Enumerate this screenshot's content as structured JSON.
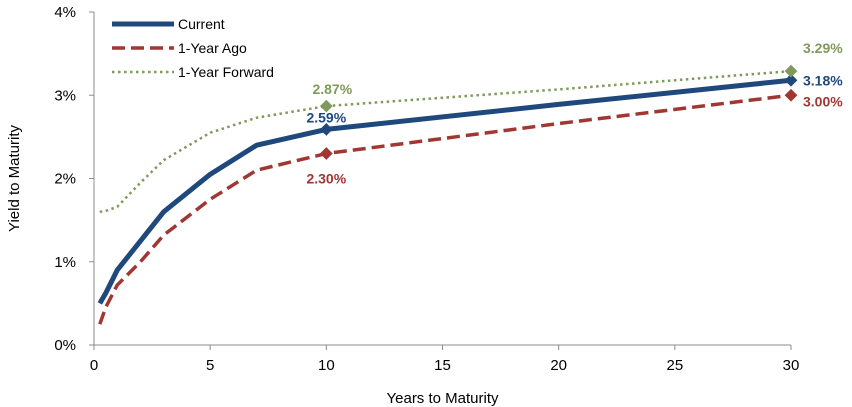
{
  "chart_data": {
    "type": "line",
    "xlabel": "Years to Maturity",
    "ylabel": "Yield to Maturity",
    "xlim": [
      0,
      30
    ],
    "ylim": [
      0,
      4
    ],
    "xticks": [
      0,
      5,
      10,
      15,
      20,
      25,
      30
    ],
    "xtick_labels": [
      "0",
      "5",
      "10",
      "15",
      "20",
      "25",
      "30"
    ],
    "yticks": [
      0,
      1,
      2,
      3,
      4
    ],
    "ytick_labels": [
      "0%",
      "1%",
      "2%",
      "3%",
      "4%"
    ],
    "grid": false,
    "legend_position": "top-left",
    "series": [
      {
        "name": "Current",
        "color": "#1f497d",
        "style": "solid",
        "x": [
          0.25,
          0.5,
          1,
          2,
          3,
          5,
          7,
          10,
          20,
          30
        ],
        "y": [
          0.5,
          0.62,
          0.9,
          1.25,
          1.6,
          2.05,
          2.4,
          2.59,
          2.89,
          3.18
        ],
        "labeled_points": [
          {
            "x": 10,
            "y": 2.59,
            "label": "2.59%"
          },
          {
            "x": 30,
            "y": 3.18,
            "label": "3.18%"
          }
        ]
      },
      {
        "name": "1-Year Ago",
        "color": "#a03732",
        "style": "dashed",
        "x": [
          0.25,
          0.5,
          1,
          2,
          3,
          5,
          7,
          10,
          20,
          30
        ],
        "y": [
          0.25,
          0.45,
          0.72,
          1.0,
          1.32,
          1.75,
          2.1,
          2.3,
          2.66,
          3.0
        ],
        "labeled_points": [
          {
            "x": 10,
            "y": 2.3,
            "label": "2.30%"
          },
          {
            "x": 30,
            "y": 3.0,
            "label": "3.00%"
          }
        ]
      },
      {
        "name": "1-Year Forward",
        "color": "#7f9a5a",
        "style": "dotted",
        "x": [
          0.25,
          0.5,
          1,
          2,
          3,
          5,
          7,
          10,
          20,
          30
        ],
        "y": [
          1.6,
          1.61,
          1.66,
          1.95,
          2.22,
          2.55,
          2.73,
          2.87,
          3.07,
          3.29
        ],
        "labeled_points": [
          {
            "x": 10,
            "y": 2.87,
            "label": "2.87%"
          },
          {
            "x": 30,
            "y": 3.29,
            "label": "3.29%"
          }
        ]
      }
    ]
  }
}
